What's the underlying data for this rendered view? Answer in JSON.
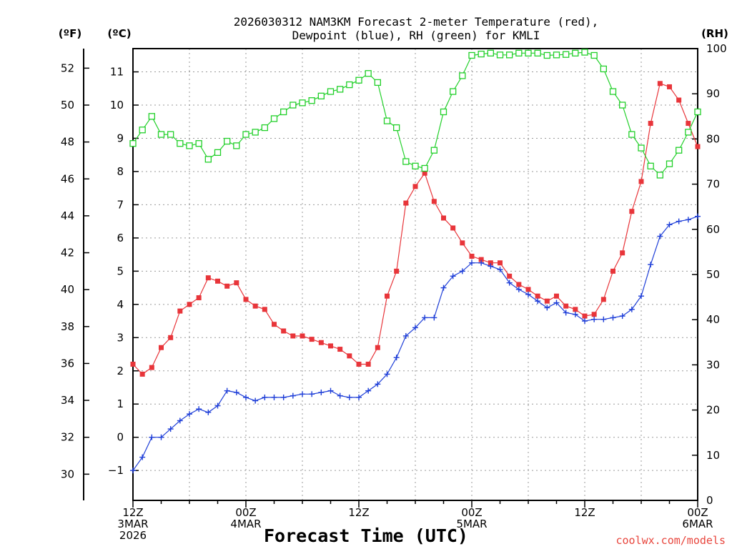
{
  "chart_data": {
    "type": "line",
    "title": "2026030312 NAM3KM Forecast 2-meter Temperature (red),",
    "title_line2": "Dewpoint (blue), RH (green) for KMLI",
    "xlabel": "Forecast Time (UTC)",
    "credit": "coolwx.com/models",
    "units": {
      "fahrenheit": "(ºF)",
      "celsius": "(ºC)",
      "rh": "(RH)"
    },
    "x_range": [
      0,
      60
    ],
    "x_ticks": [
      {
        "hour": 0,
        "lines": [
          "12Z",
          "3MAR",
          "2026"
        ]
      },
      {
        "hour": 12,
        "lines": [
          "00Z",
          "4MAR"
        ]
      },
      {
        "hour": 24,
        "lines": [
          "12Z"
        ]
      },
      {
        "hour": 36,
        "lines": [
          "00Z",
          "5MAR"
        ]
      },
      {
        "hour": 48,
        "lines": [
          "12Z"
        ]
      },
      {
        "hour": 60,
        "lines": [
          "00Z",
          "6MAR"
        ]
      }
    ],
    "celsius_range": [
      -1.9,
      11.7
    ],
    "celsius_ticks": [
      -1,
      0,
      1,
      2,
      3,
      4,
      5,
      6,
      7,
      8,
      9,
      10,
      11
    ],
    "fahrenheit_ticks": [
      30,
      32,
      34,
      36,
      38,
      40,
      42,
      44,
      46,
      48,
      50,
      52
    ],
    "rh_range": [
      0,
      100
    ],
    "rh_ticks": [
      0,
      10,
      20,
      30,
      40,
      50,
      60,
      70,
      80,
      90,
      100
    ],
    "x_hours": [
      0,
      1,
      2,
      3,
      4,
      5,
      6,
      7,
      8,
      9,
      10,
      11,
      12,
      13,
      14,
      15,
      16,
      17,
      18,
      19,
      20,
      21,
      22,
      23,
      24,
      25,
      26,
      27,
      28,
      29,
      30,
      31,
      32,
      33,
      34,
      35,
      36,
      37,
      38,
      39,
      40,
      41,
      42,
      43,
      44,
      45,
      46,
      47,
      48,
      49,
      50,
      51,
      52,
      53,
      54,
      55,
      56,
      57,
      58,
      59,
      60
    ],
    "series": [
      {
        "name": "2-meter Temperature (°C)",
        "color": "#e8353a",
        "marker": "filled-square",
        "axis": "celsius",
        "values": [
          2.2,
          1.9,
          2.1,
          2.7,
          3.0,
          3.8,
          4.0,
          4.2,
          4.8,
          4.7,
          4.55,
          4.65,
          4.15,
          3.95,
          3.85,
          3.4,
          3.2,
          3.05,
          3.05,
          2.95,
          2.85,
          2.75,
          2.65,
          2.45,
          2.2,
          2.2,
          2.7,
          4.25,
          5.0,
          7.05,
          7.55,
          7.95,
          7.1,
          6.6,
          6.3,
          5.85,
          5.45,
          5.35,
          5.25,
          5.25,
          4.85,
          4.6,
          4.45,
          4.25,
          4.1,
          4.25,
          3.95,
          3.85,
          3.65,
          3.7,
          4.15,
          5.0,
          5.55,
          6.8,
          7.7,
          9.45,
          10.65,
          10.55,
          10.15,
          9.45,
          8.75
        ]
      },
      {
        "name": "Dewpoint (°C)",
        "color": "#1f3fd8",
        "marker": "plus",
        "axis": "celsius",
        "values": [
          -1.0,
          -0.6,
          0.0,
          0.0,
          0.25,
          0.5,
          0.7,
          0.85,
          0.75,
          0.95,
          1.4,
          1.35,
          1.2,
          1.1,
          1.2,
          1.2,
          1.2,
          1.25,
          1.3,
          1.3,
          1.35,
          1.4,
          1.25,
          1.2,
          1.2,
          1.4,
          1.6,
          1.9,
          2.4,
          3.05,
          3.3,
          3.6,
          3.6,
          4.5,
          4.85,
          5.0,
          5.25,
          5.25,
          5.15,
          5.05,
          4.65,
          4.45,
          4.3,
          4.1,
          3.9,
          4.05,
          3.75,
          3.7,
          3.5,
          3.55,
          3.55,
          3.6,
          3.65,
          3.85,
          4.25,
          5.2,
          6.05,
          6.4,
          6.5,
          6.55,
          6.65
        ]
      },
      {
        "name": "RH (%)",
        "color": "#22d02a",
        "marker": "open-square",
        "axis": "rh",
        "values": [
          79,
          82,
          85,
          81,
          81,
          79,
          78.5,
          79,
          75.5,
          77,
          79.5,
          78.5,
          81,
          81.5,
          82.5,
          84.5,
          86,
          87.5,
          88,
          88.5,
          89.5,
          90.5,
          91,
          92,
          93,
          94.5,
          92.5,
          84,
          82.5,
          75,
          74,
          73.5,
          77.5,
          86,
          90.5,
          94,
          98.5,
          98.8,
          99,
          98.6,
          98.6,
          99,
          99,
          99,
          98.5,
          98.6,
          98.7,
          99,
          99.2,
          98.5,
          95.5,
          90.5,
          87.5,
          81,
          78,
          74,
          72,
          74.5,
          77.5,
          81.5,
          86
        ]
      }
    ]
  }
}
